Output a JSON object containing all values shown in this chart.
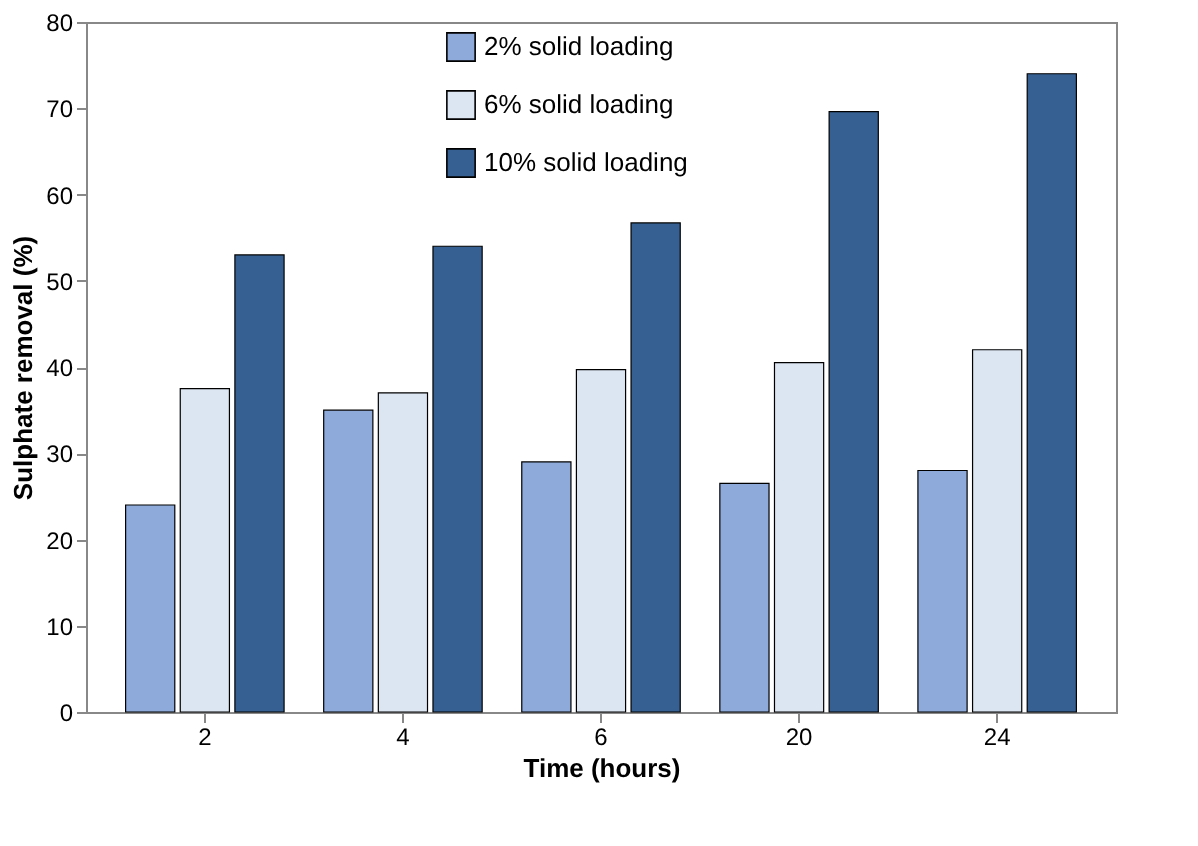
{
  "chart_data": {
    "type": "bar",
    "xlabel": "Time (hours)",
    "ylabel": "Sulphate removal (%)",
    "categories": [
      "2",
      "4",
      "6",
      "20",
      "24"
    ],
    "series": [
      {
        "name": "2% solid loading",
        "color": "#8eaadb",
        "values": [
          24,
          35,
          29,
          26.5,
          28
        ]
      },
      {
        "name": "6% solid loading",
        "color": "#dce6f2",
        "values": [
          37.5,
          37,
          39.7,
          40.5,
          42
        ]
      },
      {
        "name": "10% solid loading",
        "color": "#376092",
        "values": [
          53,
          54,
          56.7,
          69.6,
          74
        ]
      }
    ],
    "ylim": [
      0,
      80
    ],
    "yticks": [
      0,
      10,
      20,
      30,
      40,
      50,
      60,
      70,
      80
    ],
    "grid": false,
    "legend": "top"
  }
}
